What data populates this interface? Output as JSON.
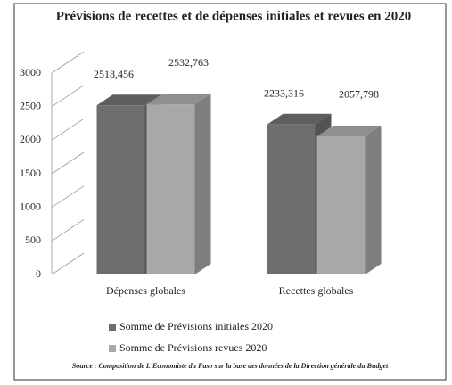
{
  "chart_data": {
    "type": "bar3d",
    "title": "Prévisions de recettes et de dépenses initiales et revues en 2020",
    "categories": [
      "Dépenses globales",
      "Recettes globales"
    ],
    "series": [
      {
        "name": "Somme de Prévisions initiales 2020",
        "color": "#6e6e6e",
        "values": [
          2518.456,
          2233.316
        ],
        "value_labels": [
          "2518,456",
          "2233,316"
        ]
      },
      {
        "name": "Somme de Prévisions revues 2020",
        "color": "#a8a8a8",
        "values": [
          2532.763,
          2057.798
        ],
        "value_labels": [
          "2532,763",
          "2057,798"
        ]
      }
    ],
    "ylim": [
      0,
      3000
    ],
    "yticks": [
      0,
      500,
      1000,
      1500,
      2000,
      2500,
      3000
    ],
    "grid": true,
    "source": "Source : Composition de L'Economiste du Faso sur la base des données de la Direction générale du Budget"
  }
}
